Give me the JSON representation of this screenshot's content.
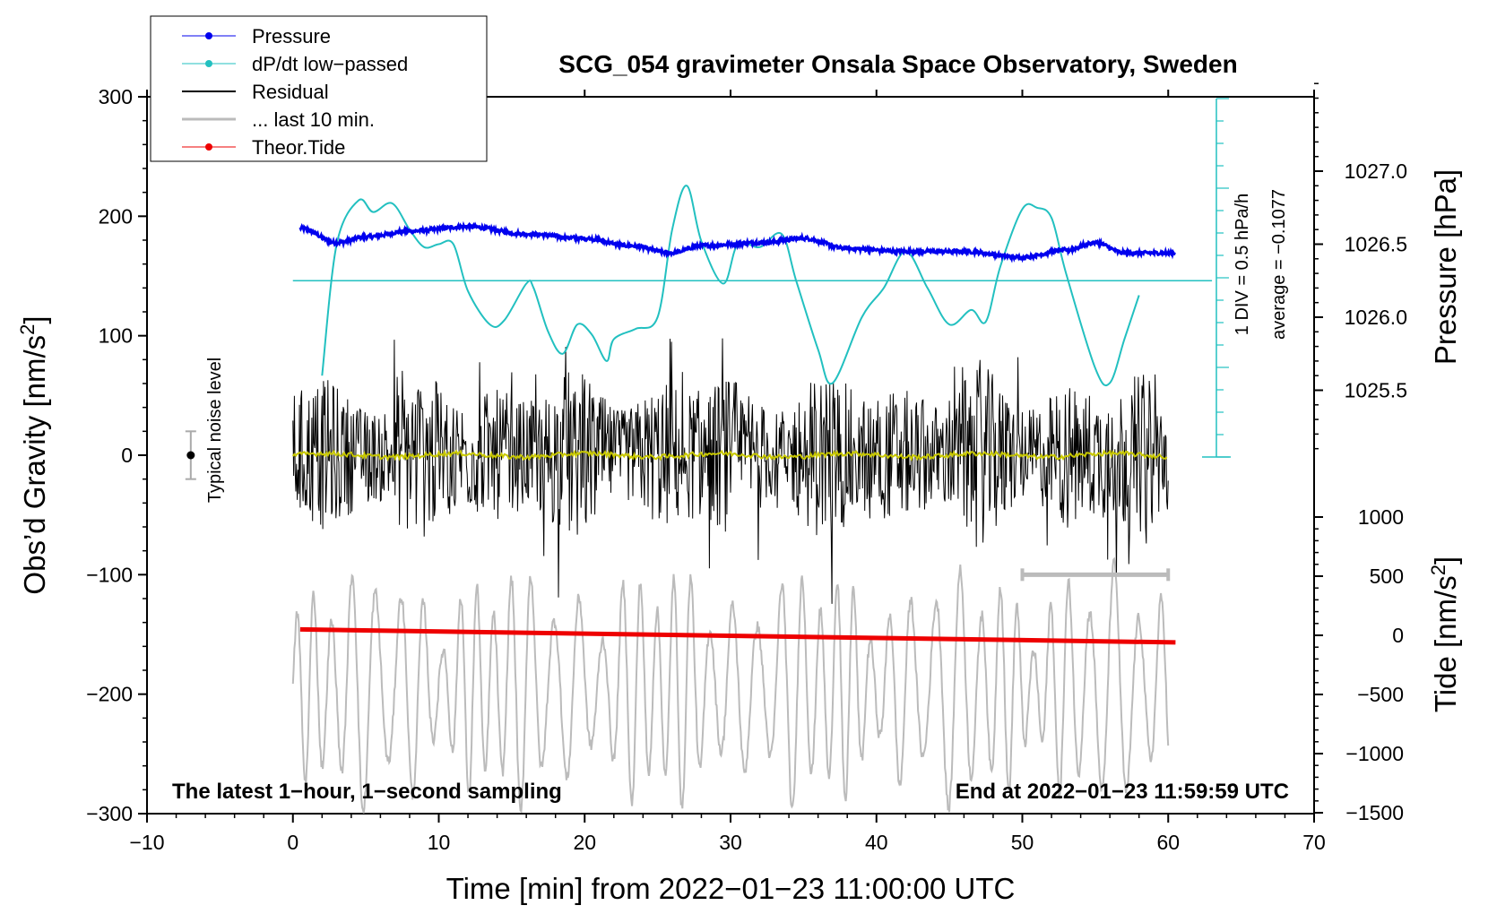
{
  "colors": {
    "pressure": "#0000ee",
    "dpdt": "#22c0c0",
    "residual": "#000000",
    "last10": "#bbbbbb",
    "tide": "#ee0000",
    "yellow": "#c8c800"
  },
  "chart_data": {
    "type": "line",
    "title": "SCG_054 gravimeter Onsala Space Observatory, Sweden",
    "xlabel": "Time [min] from 2022−01−23 11:00:00 UTC",
    "ylabel_left": "Obs’d Gravity [nm/s",
    "ylabel_left_sup": "2",
    "ylabel_left_close": "]",
    "ylabel_pressure": "Pressure [hPa]",
    "ylabel_tide": "Tide [nm/s",
    "ylabel_tide_sup": "2",
    "ylabel_tide_close": "]",
    "xlim": [
      -10,
      70
    ],
    "ylim": [
      -300,
      300
    ],
    "x_ticks": [
      "−10",
      "0",
      "10",
      "20",
      "30",
      "40",
      "50",
      "60",
      "70"
    ],
    "y_ticks": [
      "300",
      "200",
      "100",
      "0",
      "−100",
      "−200",
      "−300"
    ],
    "pressure_ticks": [
      "1027.0",
      "1026.5",
      "1026.0",
      "1025.5"
    ],
    "tide_ticks": [
      "1000",
      "500",
      "0",
      "−500",
      "−1000",
      "−1500"
    ],
    "pressure_range_hPa": [
      1025.1,
      1027.6
    ],
    "tide_range": [
      -1500,
      1500
    ],
    "dpdt_scale_text": "1 DIV = 0.5 hPa/h",
    "dpdt_average_text": "average = −0.1077",
    "noise_label": "Typical noise level",
    "bottom_left_note": "The latest 1−hour, 1−second sampling",
    "bottom_right_note": "End at 2022−01−23 11:59:59 UTC",
    "legend": [
      {
        "label": "Pressure",
        "color": "#0000ee",
        "marker": true,
        "width": 1
      },
      {
        "label": "dP/dt low−passed",
        "color": "#22c0c0",
        "marker": true,
        "width": 1
      },
      {
        "label": "Residual",
        "color": "#000000",
        "marker": false,
        "width": 2
      },
      {
        "label": "... last 10 min.",
        "color": "#bbbbbb",
        "marker": false,
        "width": 3
      },
      {
        "label": "Theor.Tide",
        "color": "#ee0000",
        "marker": true,
        "width": 1
      }
    ],
    "series": [
      {
        "name": "Pressure",
        "axis": "pressure_hPa",
        "x": [
          0.5,
          3,
          5,
          8,
          12,
          16,
          20,
          23,
          26,
          28,
          32,
          35,
          38,
          42,
          46,
          50,
          53,
          55,
          57,
          60.5
        ],
        "y": [
          1026.61,
          1026.51,
          1026.55,
          1026.59,
          1026.62,
          1026.57,
          1026.54,
          1026.49,
          1026.44,
          1026.49,
          1026.51,
          1026.54,
          1026.47,
          1026.45,
          1026.45,
          1026.41,
          1026.46,
          1026.51,
          1026.44,
          1026.44
        ]
      },
      {
        "name": "dP/dt low-passed",
        "axis": "pressure_hPa",
        "x": [
          2,
          3,
          4.5,
          5.5,
          6.8,
          8,
          9,
          10,
          11,
          12,
          13.5,
          14.5,
          16,
          16.5,
          17.5,
          18.5,
          19.5,
          20.5,
          21.5,
          22,
          23.5,
          25,
          26,
          27,
          28,
          29.5,
          30.5,
          32,
          33.5,
          34.5,
          36,
          37,
          39,
          40.5,
          42,
          43.5,
          45,
          46.5,
          47.5,
          48.5,
          50,
          51,
          52,
          53,
          55,
          56,
          57,
          58
        ],
        "y": [
          1025.6,
          1026.5,
          1026.8,
          1026.72,
          1026.78,
          1026.6,
          1026.48,
          1026.5,
          1026.5,
          1026.18,
          1025.95,
          1025.98,
          1026.23,
          1026.2,
          1025.9,
          1025.75,
          1025.95,
          1025.88,
          1025.7,
          1025.85,
          1025.92,
          1026.0,
          1026.6,
          1026.9,
          1026.52,
          1026.23,
          1026.5,
          1026.48,
          1026.57,
          1026.25,
          1025.78,
          1025.55,
          1026.0,
          1026.2,
          1026.45,
          1026.2,
          1025.95,
          1026.05,
          1025.97,
          1026.35,
          1026.74,
          1026.75,
          1026.68,
          1026.3,
          1025.65,
          1025.55,
          1025.85,
          1026.15
        ]
      },
      {
        "name": "Residual",
        "axis": "gravity",
        "x_range": [
          0,
          60
        ],
        "mean": 0,
        "typical_amplitude": 80
      },
      {
        "name": "... last 10 min.",
        "axis": "gravity",
        "x_range": [
          0,
          60
        ],
        "typical_range": [
          -260,
          -130
        ]
      },
      {
        "name": "Theor.Tide",
        "axis": "tide",
        "x": [
          0.5,
          60.5
        ],
        "y": [
          50,
          -60
        ]
      }
    ],
    "noise_bar": {
      "x": -7,
      "center": 0,
      "half_range": 20
    },
    "last10_bar_x": [
      50,
      60
    ],
    "dpdt_zero_hPa": 1026.25
  }
}
